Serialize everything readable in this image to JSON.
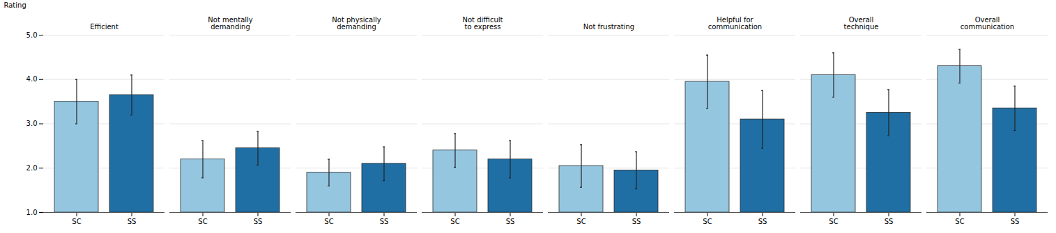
{
  "chart_data": {
    "type": "bar",
    "categories": [
      "Efficient",
      "Not mentally\ndemanding",
      "Not physically\ndemanding",
      "Not difficult\nto express",
      "Not frustrating",
      "Helpful for\ncommunication",
      "Overall\ntechnique",
      "Overall\ncommunication"
    ],
    "series": [
      {
        "name": "SC",
        "color": "#94C6E0",
        "values": [
          3.5,
          2.2,
          1.9,
          2.4,
          2.05,
          3.95,
          4.1,
          4.3
        ],
        "errors": [
          0.5,
          0.42,
          0.3,
          0.38,
          0.48,
          0.6,
          0.5,
          0.38
        ]
      },
      {
        "name": "SS",
        "color": "#1F6FA5",
        "values": [
          3.65,
          2.45,
          2.1,
          2.2,
          1.95,
          3.1,
          3.25,
          3.35
        ],
        "errors": [
          0.45,
          0.38,
          0.38,
          0.42,
          0.42,
          0.65,
          0.52,
          0.5
        ]
      }
    ],
    "ylabel": "Rating",
    "ylim": [
      1,
      5
    ],
    "yticks": [
      1,
      2,
      3,
      4,
      5
    ],
    "grid": true
  }
}
